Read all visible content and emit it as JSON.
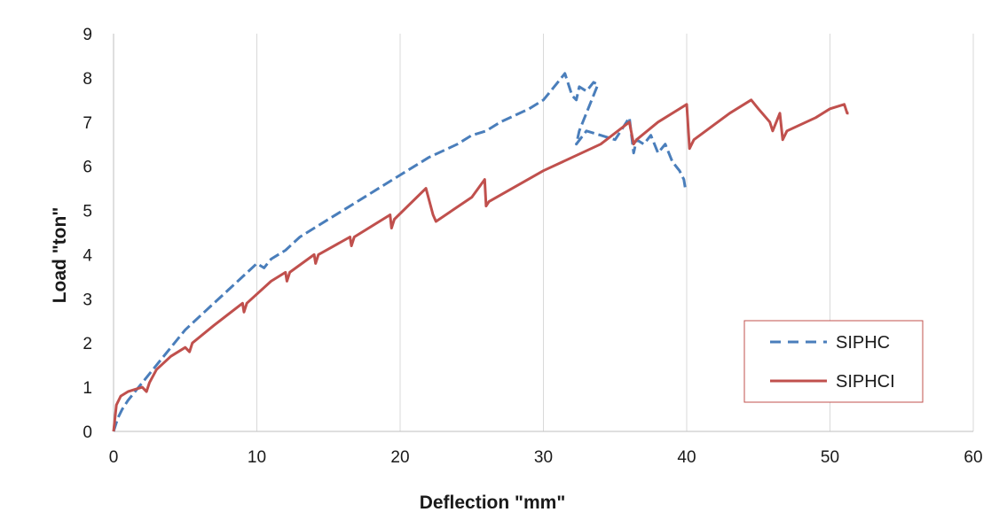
{
  "chart_data": {
    "type": "line",
    "title": "",
    "xlabel": "Deflection \"mm\"",
    "ylabel": "Load \"ton\"",
    "xlim": [
      0,
      60
    ],
    "ylim": [
      0,
      9
    ],
    "xticks": [
      0,
      10,
      20,
      30,
      40,
      50,
      60
    ],
    "yticks": [
      0,
      1,
      2,
      3,
      4,
      5,
      6,
      7,
      8,
      9
    ],
    "grid": "vertical",
    "legend_position": "right-bottom",
    "series": [
      {
        "name": "SIPHC",
        "color": "#4a7ebb",
        "dash": "dashed",
        "x": [
          0,
          0.3,
          0.6,
          1,
          1.5,
          2,
          2.5,
          3,
          4,
          5,
          6,
          7,
          8,
          9,
          10,
          10.5,
          11,
          12,
          13,
          14,
          15,
          16,
          17,
          18,
          19,
          20,
          21,
          22,
          23,
          24,
          25,
          26,
          27,
          28,
          29,
          30,
          30.5,
          31,
          31.5,
          32,
          32.3,
          32.5,
          33,
          33.5,
          33.8,
          32.5,
          32.3,
          33,
          34,
          35,
          36,
          36.3,
          36.5,
          37,
          37.5,
          38,
          38.5,
          39,
          39.5,
          39.8,
          39.9
        ],
        "values": [
          0,
          0.3,
          0.5,
          0.7,
          0.9,
          1.1,
          1.3,
          1.5,
          1.9,
          2.3,
          2.6,
          2.9,
          3.2,
          3.5,
          3.8,
          3.7,
          3.9,
          4.1,
          4.4,
          4.6,
          4.8,
          5.0,
          5.2,
          5.4,
          5.6,
          5.8,
          6.0,
          6.2,
          6.35,
          6.5,
          6.7,
          6.8,
          7.0,
          7.15,
          7.3,
          7.5,
          7.7,
          7.9,
          8.1,
          7.6,
          7.5,
          7.8,
          7.7,
          7.9,
          7.85,
          6.8,
          6.5,
          6.8,
          6.7,
          6.6,
          7.1,
          6.3,
          6.6,
          6.5,
          6.7,
          6.3,
          6.5,
          6.1,
          5.9,
          5.7,
          5.5
        ]
      },
      {
        "name": "SIPHCI",
        "color": "#c0504d",
        "dash": "solid",
        "x": [
          0,
          0.2,
          0.5,
          1,
          1.5,
          2,
          2.3,
          2.5,
          3,
          4,
          5,
          5.3,
          5.5,
          7,
          9,
          9.1,
          9.3,
          11,
          12,
          12.1,
          12.3,
          14,
          14.1,
          14.3,
          16.5,
          16.6,
          16.8,
          19.3,
          19.4,
          19.6,
          21.8,
          22.3,
          22.5,
          25,
          25.9,
          26,
          26.2,
          30,
          34,
          36,
          36.3,
          36.5,
          38,
          40,
          40.2,
          40.5,
          43,
          44.5,
          45,
          45.8,
          46,
          46.5,
          46.7,
          47,
          49,
          50,
          51,
          51.2,
          51.3
        ],
        "values": [
          0,
          0.6,
          0.8,
          0.9,
          0.95,
          1.0,
          0.9,
          1.1,
          1.4,
          1.7,
          1.9,
          1.8,
          2.0,
          2.4,
          2.9,
          2.7,
          2.9,
          3.4,
          3.6,
          3.4,
          3.6,
          4.0,
          3.8,
          4.0,
          4.4,
          4.2,
          4.4,
          4.9,
          4.6,
          4.8,
          5.5,
          4.9,
          4.75,
          5.3,
          5.7,
          5.1,
          5.2,
          5.9,
          6.5,
          7.0,
          6.5,
          6.6,
          7.0,
          7.4,
          6.4,
          6.6,
          7.2,
          7.5,
          7.3,
          7.0,
          6.8,
          7.2,
          6.6,
          6.8,
          7.1,
          7.3,
          7.4,
          7.2,
          7.2
        ]
      }
    ]
  }
}
